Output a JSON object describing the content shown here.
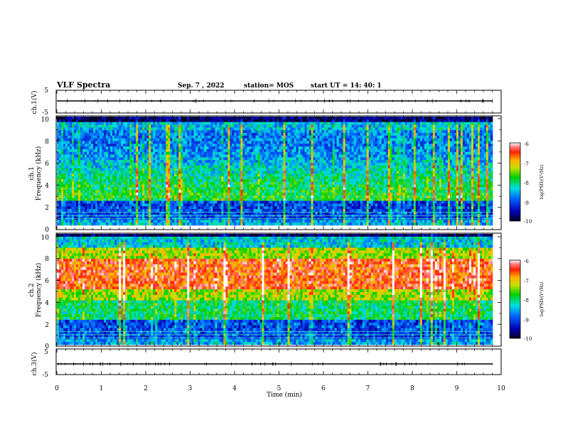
{
  "header": {
    "title": "VLF Spectra",
    "date": "Sep. 7 , 2022",
    "station": "station= MOS",
    "start_ut": "start  UT =   14: 40: 1"
  },
  "chart_data": [
    {
      "type": "line",
      "panel": "ch1-voltage",
      "ylabel": "ch.1(V)",
      "yticklabels": [
        "5",
        "-5"
      ],
      "ylim": [
        -5,
        5
      ],
      "xlim": [
        0,
        10
      ],
      "trace_level": 0
    },
    {
      "type": "heatmap",
      "panel": "ch1-spectrogram",
      "ylabel": "ch.1\nFrequency (kHz)",
      "yticklabels": [
        "0",
        "2",
        "4",
        "6",
        "8",
        "10"
      ],
      "ylim": [
        0,
        10
      ],
      "xlim": [
        0,
        10
      ],
      "colorbar": {
        "label": "log(PSD)(V²/Hz)",
        "ticklabels": [
          "-6",
          "-7",
          "-8",
          "-9",
          "-10"
        ],
        "range": [
          -10,
          -6
        ]
      }
    },
    {
      "type": "heatmap",
      "panel": "ch2-spectrogram",
      "ylabel": "ch.2\nFrequency (kHz)",
      "yticklabels": [
        "0",
        "2",
        "4",
        "6",
        "8",
        "10"
      ],
      "ylim": [
        0,
        10
      ],
      "xlim": [
        0,
        10
      ],
      "colorbar": {
        "label": "log(PSD)(V²/Hz)",
        "ticklabels": [
          "-6",
          "-7",
          "-8",
          "-9",
          "-10"
        ],
        "range": [
          -10,
          -6
        ]
      }
    },
    {
      "type": "line",
      "panel": "ch3-voltage",
      "ylabel": "ch.3(V)",
      "yticklabels": [
        "5",
        "-5"
      ],
      "ylim": [
        -5,
        5
      ],
      "xlim": [
        0,
        10
      ],
      "trace_level": 0,
      "xlabel": "Time  (min)",
      "xticklabels": [
        "0",
        "1",
        "2",
        "3",
        "4",
        "5",
        "6",
        "7",
        "8",
        "9",
        "10"
      ]
    }
  ],
  "labels": {
    "ch1_volt_ylabel": "ch.1(V)",
    "ch1_spec_ylabel_top": "ch.1",
    "ch1_spec_ylabel_bottom": "Frequency (kHz)",
    "ch2_spec_ylabel_top": "ch.2",
    "ch2_spec_ylabel_bottom": "Frequency (kHz)",
    "ch3_volt_ylabel": "ch.3(V)",
    "xlabel": "Time  (min)",
    "colorbar_label": "log(PSD)(V²/Hz)"
  },
  "colors": {
    "background": "#ffffff",
    "axis": "#000000"
  }
}
